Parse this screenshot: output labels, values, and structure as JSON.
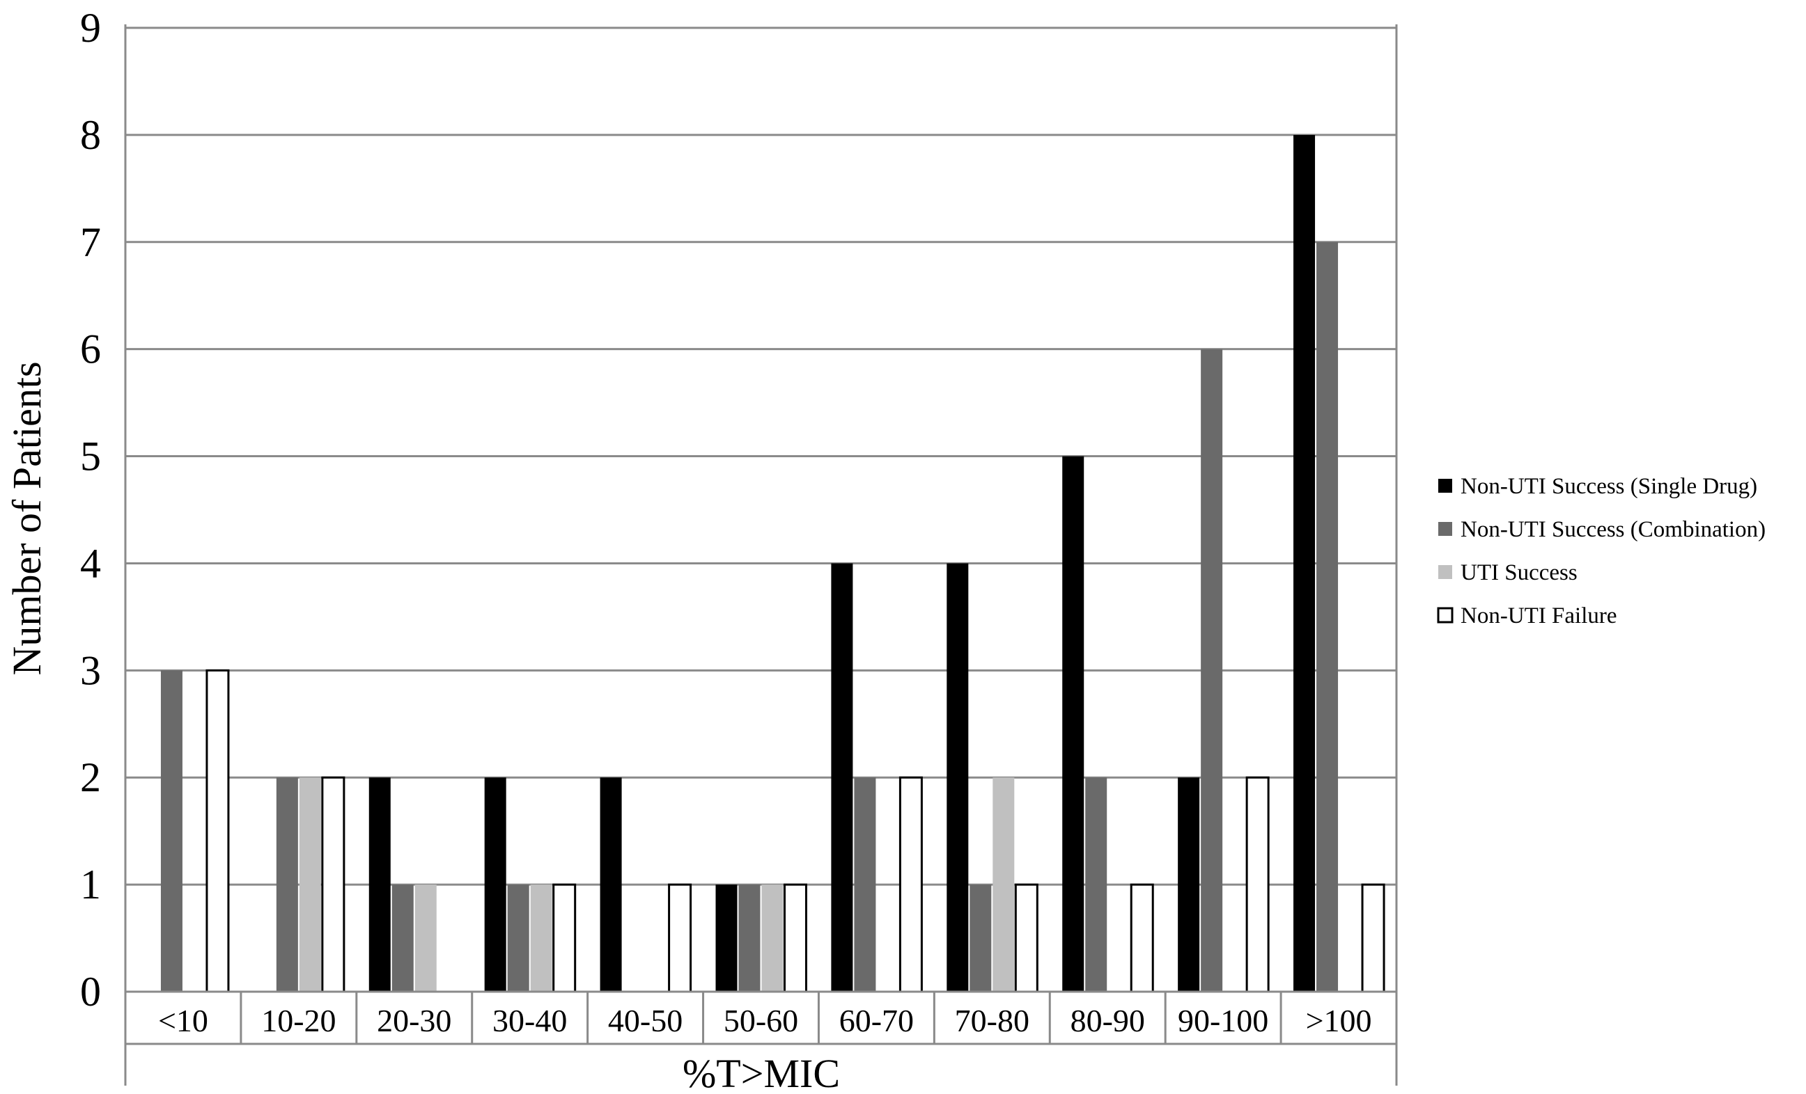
{
  "chart_data": {
    "type": "bar",
    "title": "",
    "xlabel": "%T>MIC",
    "ylabel": "Number of Patients",
    "ylim": [
      0,
      9
    ],
    "yticks": [
      0,
      1,
      2,
      3,
      4,
      5,
      6,
      7,
      8,
      9
    ],
    "grid": true,
    "legend_position": "right",
    "categories": [
      "<10",
      "10-20",
      "20-30",
      "30-40",
      "40-50",
      "50-60",
      "60-70",
      "70-80",
      "80-90",
      "90-100",
      ">100"
    ],
    "series": [
      {
        "name": "Non-UTI Success (Single Drug)",
        "color": "#000000",
        "values": [
          0,
          0,
          2,
          2,
          2,
          1,
          4,
          4,
          5,
          2,
          8
        ]
      },
      {
        "name": "Non-UTI Success (Combination)",
        "color": "#6a6a6a",
        "values": [
          3,
          2,
          1,
          1,
          0,
          1,
          2,
          1,
          2,
          6,
          7
        ]
      },
      {
        "name": "UTI Success",
        "color": "#c0c0c0",
        "values": [
          0,
          2,
          1,
          1,
          0,
          1,
          0,
          2,
          0,
          0,
          0
        ]
      },
      {
        "name": "Non-UTI Failure",
        "color": "#ffffff",
        "values": [
          3,
          2,
          0,
          1,
          1,
          1,
          2,
          1,
          1,
          2,
          1
        ]
      }
    ]
  }
}
